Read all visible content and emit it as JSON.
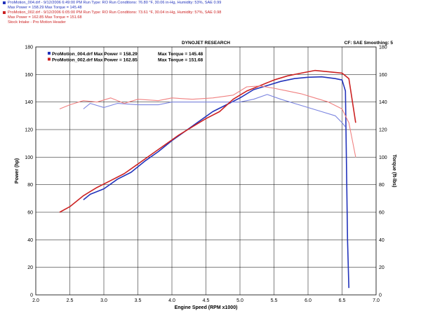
{
  "header": {
    "run1": {
      "line1": "ProMotion_004.drf - 9/12/2006 6:49:00 PM  Run Type: RO  Run Conditions: 76.80 °F, 30.06 in-Hg,  Humidity: 53%, SAE 0.99",
      "line2": "Max Power = 158.29   Max Torque = 145.48",
      "color": "#2233bb"
    },
    "run2": {
      "line1": "ProMotion_002.drf - 9/12/2006 6:05:00 PM  Run Type: RO  Run Conditions: 73.61 °F, 30.04 in-Hg,  Humidity: 57%, SAE 0.98",
      "line2": "Max Power = 162.85   Max Torque = 151.68",
      "line3": "Stock Intake - Pro Motion Header",
      "color": "#cc2222"
    }
  },
  "chart_data": {
    "type": "line",
    "title": "DYNOJET RESEARCH",
    "right_label": "CF: SAE  Smoothing: 5",
    "xlabel": "Engine Speed (RPM x1000)",
    "ylabel_left": "Power (hp)",
    "ylabel_right": "Torque (ft-lbs)",
    "xlim": [
      2.0,
      7.0
    ],
    "ylim": [
      0,
      180
    ],
    "x_ticks": [
      "2.0",
      "2.5",
      "3.0",
      "3.5",
      "4.0",
      "4.5",
      "5.0",
      "5.5",
      "6.0",
      "6.5",
      "7.0"
    ],
    "y_ticks": [
      "0",
      "20",
      "40",
      "60",
      "80",
      "100",
      "120",
      "140",
      "160",
      "180"
    ],
    "grid": true,
    "legend": [
      {
        "label": "ProMotion_004.drf Max Power = 158.29",
        "torque": "Max Torque = 145.48",
        "color": "#2233bb"
      },
      {
        "label": "ProMotion_002.drf Max Power = 162.85",
        "torque": "Max Torque = 151.68",
        "color": "#cc2222"
      }
    ],
    "series": [
      {
        "name": "ProMotion_004.drf Power",
        "kind": "power",
        "color": "#2233bb",
        "x": [
          2.7,
          2.8,
          3.0,
          3.2,
          3.4,
          3.6,
          3.8,
          4.0,
          4.2,
          4.4,
          4.6,
          4.8,
          5.0,
          5.2,
          5.4,
          5.6,
          5.8,
          6.0,
          6.2,
          6.4,
          6.5,
          6.55,
          6.58,
          6.6
        ],
        "y": [
          69,
          73,
          77,
          84,
          89,
          97,
          104,
          112,
          119,
          126,
          133,
          138,
          143,
          149,
          152,
          155,
          157,
          158,
          158.3,
          157,
          156,
          148,
          40,
          5
        ]
      },
      {
        "name": "ProMotion_004.drf Torque",
        "kind": "torque",
        "color": "#7a84e0",
        "x": [
          2.7,
          2.8,
          3.0,
          3.2,
          3.5,
          3.8,
          4.0,
          4.2,
          4.4,
          4.6,
          4.8,
          5.0,
          5.2,
          5.4,
          5.6,
          5.8,
          6.0,
          6.2,
          6.4,
          6.5,
          6.55
        ],
        "y": [
          135,
          139,
          136,
          139,
          138,
          138,
          140,
          140,
          140,
          140,
          140,
          140,
          142,
          145.5,
          142,
          139,
          136,
          133,
          130,
          125,
          122
        ]
      },
      {
        "name": "ProMotion_002.drf Power",
        "kind": "power",
        "color": "#cc2222",
        "x": [
          2.35,
          2.5,
          2.7,
          2.9,
          3.1,
          3.3,
          3.5,
          3.7,
          3.9,
          4.1,
          4.3,
          4.5,
          4.7,
          4.9,
          5.1,
          5.3,
          5.5,
          5.7,
          5.9,
          6.1,
          6.3,
          6.5,
          6.6,
          6.7
        ],
        "y": [
          60,
          64,
          72,
          78,
          83,
          88,
          95,
          102,
          109,
          116,
          122,
          128,
          133,
          142,
          148,
          152,
          156,
          159,
          161,
          162.9,
          162,
          161,
          157,
          125
        ]
      },
      {
        "name": "ProMotion_002.drf Torque",
        "kind": "torque",
        "color": "#f08080",
        "x": [
          2.35,
          2.5,
          2.7,
          2.9,
          3.1,
          3.3,
          3.5,
          3.8,
          4.0,
          4.3,
          4.6,
          4.9,
          5.1,
          5.3,
          5.5,
          5.7,
          5.9,
          6.1,
          6.3,
          6.5,
          6.6,
          6.7
        ],
        "y": [
          135,
          138,
          141,
          140,
          143,
          139,
          142,
          141,
          143,
          142,
          143,
          145,
          151,
          151.7,
          150,
          148,
          146,
          143,
          140,
          135,
          125,
          100
        ]
      }
    ]
  }
}
